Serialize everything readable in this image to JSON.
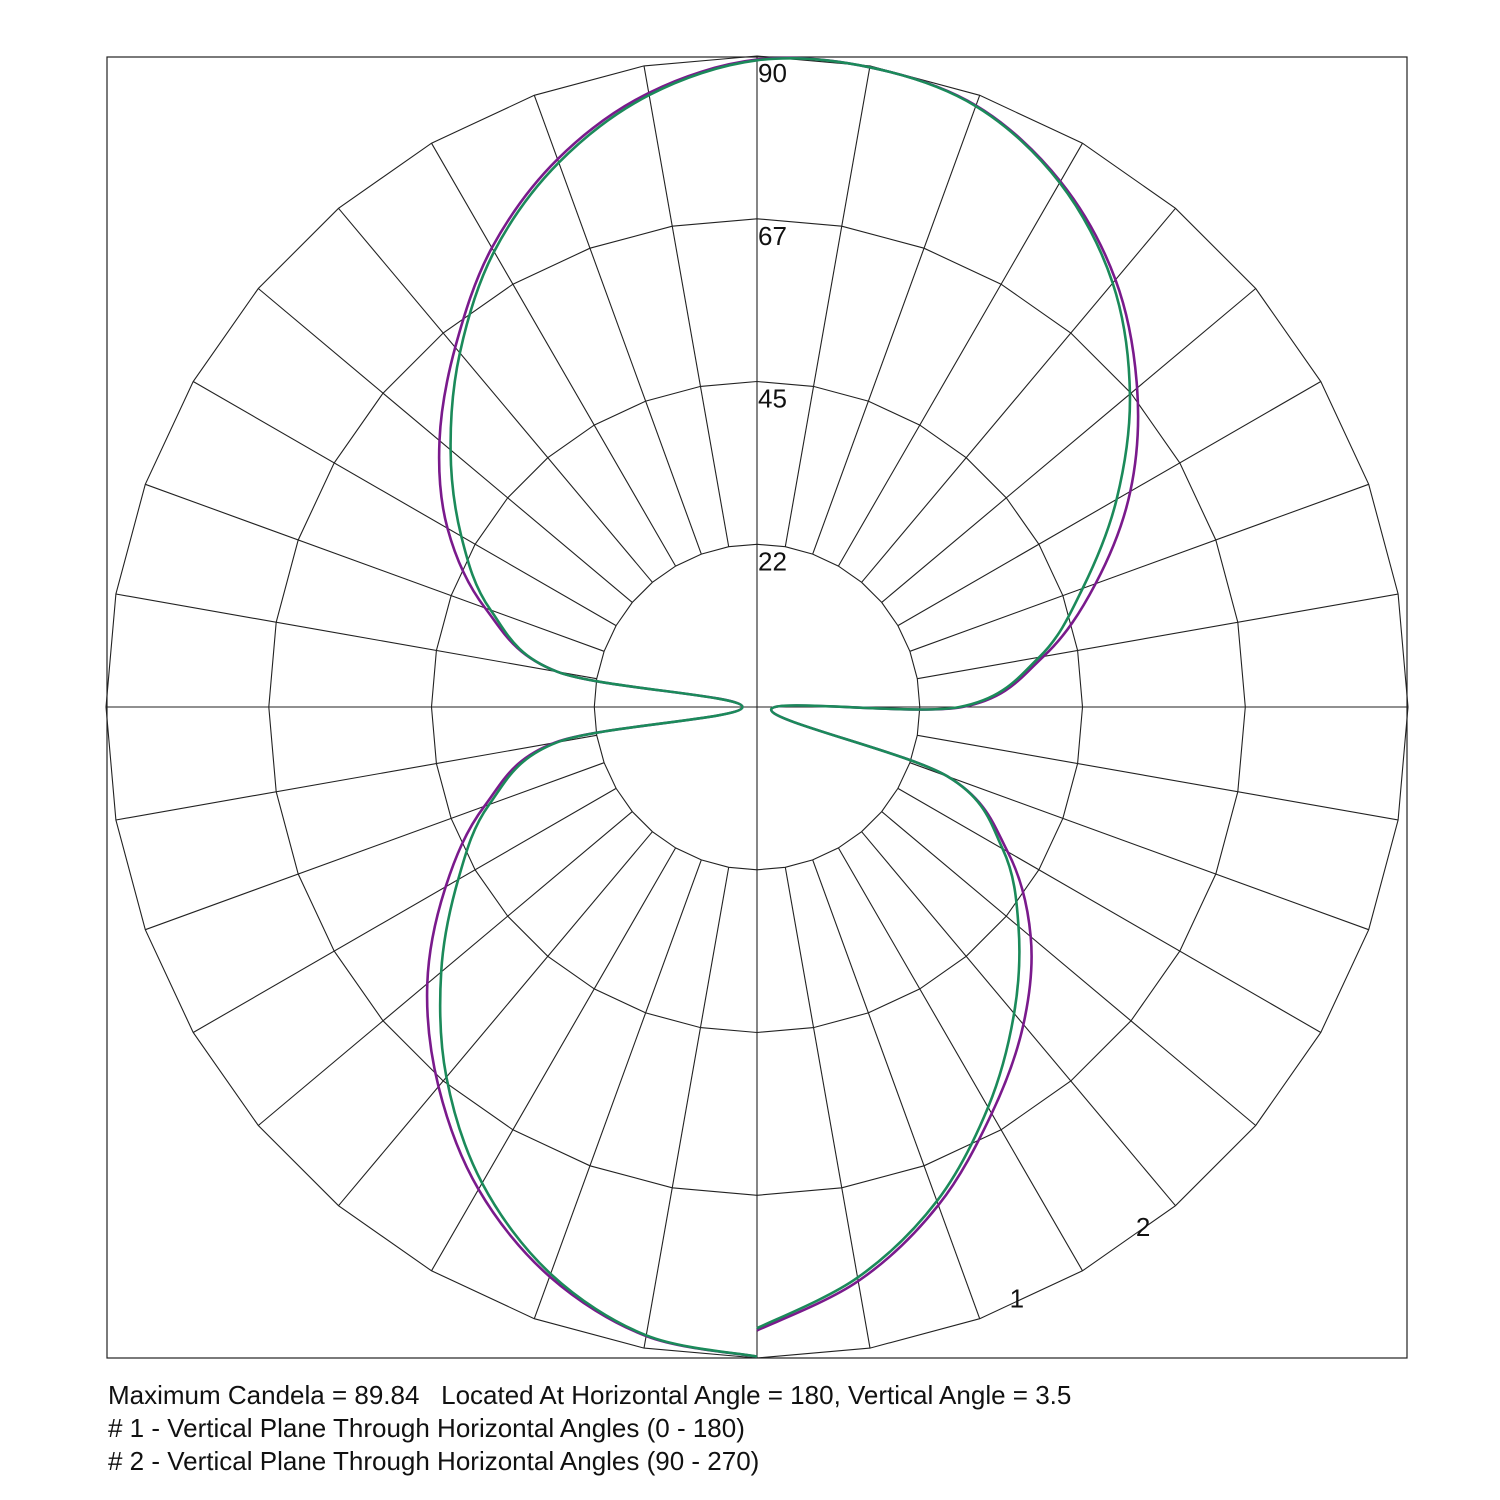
{
  "chart_data": {
    "type": "polar",
    "radial_ticks": [
      "22",
      "45",
      "67",
      "90"
    ],
    "radial_tick_values": [
      22.5,
      45,
      67.5,
      90
    ],
    "r_max": 90,
    "angular_grid_step_deg": 10,
    "series": [
      {
        "name": "1",
        "color": "#1b8a5a",
        "angles_deg": [
          0,
          10,
          20,
          30,
          40,
          50,
          60,
          70,
          80,
          90,
          100,
          110,
          120,
          130,
          140,
          150,
          160,
          170,
          180,
          190,
          200,
          210,
          220,
          230,
          240,
          250,
          260,
          270,
          280,
          290,
          300,
          310,
          320,
          330,
          340,
          350,
          360
        ],
        "values": [
          89.8,
          88.2,
          83.4,
          76.0,
          66.8,
          57.0,
          47.7,
          39.4,
          28.0,
          2.0,
          28.0,
          39.2,
          47.2,
          55.3,
          63.9,
          72.7,
          80.1,
          85.9,
          89.4,
          89.8,
          88.4,
          83.7,
          76.5,
          67.3,
          57.4,
          47.9,
          39.6,
          28.0,
          2.0,
          28.0,
          39.2,
          47.2,
          55.3,
          63.9,
          72.7,
          80.1,
          85.9
        ],
        "label": "1"
      },
      {
        "name": "2",
        "color": "#7a1a8c",
        "angles_deg": [
          0,
          10,
          20,
          30,
          40,
          50,
          60,
          70,
          80,
          90,
          100,
          110,
          120,
          130,
          140,
          150,
          160,
          170,
          180,
          190,
          200,
          210,
          220,
          230,
          240,
          250,
          260,
          270,
          280,
          290,
          300,
          310,
          320,
          330,
          340,
          350,
          360
        ],
        "values": [
          89.8,
          88.3,
          83.8,
          77.0,
          68.5,
          59.5,
          49.7,
          40.1,
          28.4,
          2.0,
          28.0,
          40.0,
          49.4,
          57.3,
          64.9,
          73.3,
          80.6,
          86.2,
          89.5,
          89.8,
          88.5,
          83.9,
          77.1,
          68.6,
          59.6,
          49.8,
          40.2,
          28.4,
          2.0,
          28.0,
          40.0,
          49.4,
          57.3,
          64.9,
          73.3,
          80.6,
          86.2
        ],
        "label": "2"
      }
    ],
    "notes": [
      "Maximum Candela = 89.84   Located At Horizontal Angle = 180, Vertical Angle = 3.5",
      "# 1 - Vertical Plane Through Horizontal Angles (0 - 180)",
      "# 2 - Vertical Plane Through Horizontal Angles (90 - 270)"
    ]
  },
  "captions": {
    "line1": "Maximum Candela = 89.84   Located At Horizontal Angle = 180, Vertical Angle = 3.5",
    "line2": "# 1 - Vertical Plane Through Horizontal Angles (0 - 180)",
    "line3": "# 2 - Vertical Plane Through Horizontal Angles (90 - 270)"
  }
}
